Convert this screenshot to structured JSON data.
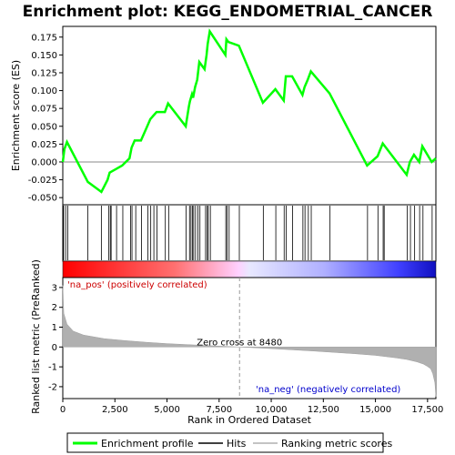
{
  "chart_data": {
    "type": "line",
    "title": "Enrichment plot: KEGG_ENDOMETRIAL_CANCER",
    "xlabel": "Rank in Ordered Dataset",
    "xlim": [
      0,
      17900
    ],
    "x_ticks": [
      0,
      2500,
      5000,
      7500,
      10000,
      12500,
      15000,
      17500
    ],
    "x_tick_labels": [
      "0",
      "2,500",
      "5,000",
      "7,500",
      "10,000",
      "12,500",
      "15,000",
      "17,500"
    ],
    "es_panel": {
      "ylabel": "Enrichment score (ES)",
      "ylim": [
        -0.06,
        0.19
      ],
      "y_ticks": [
        -0.05,
        -0.025,
        0,
        0.025,
        0.05,
        0.075,
        0.1,
        0.125,
        0.15,
        0.175
      ],
      "y_tick_labels": [
        "-0.050",
        "-0.025",
        "0.000",
        "0.025",
        "0.050",
        "0.075",
        "0.100",
        "0.125",
        "0.150",
        "0.175"
      ],
      "series": [
        {
          "name": "Enrichment profile",
          "color": "#00ff00",
          "x": [
            0,
            80,
            200,
            1200,
            1850,
            2150,
            2250,
            2550,
            2850,
            3200,
            3300,
            3450,
            3750,
            4050,
            4200,
            4350,
            4500,
            4900,
            5050,
            5900,
            6050,
            6100,
            6200,
            6250,
            6350,
            6450,
            6550,
            6800,
            6900,
            6950,
            7050,
            7800,
            7850,
            7950,
            8450,
            9600,
            10200,
            10600,
            10700,
            11000,
            11500,
            11600,
            11750,
            11900,
            12800,
            14600,
            15100,
            15350,
            16500,
            16650,
            16850,
            17100,
            17250,
            17700,
            17900
          ],
          "y": [
            0.0,
            0.018,
            0.028,
            -0.028,
            -0.042,
            -0.025,
            -0.015,
            -0.01,
            -0.005,
            0.005,
            0.02,
            0.03,
            0.03,
            0.05,
            0.06,
            0.065,
            0.07,
            0.07,
            0.082,
            0.05,
            0.078,
            0.085,
            0.095,
            0.09,
            0.105,
            0.115,
            0.14,
            0.13,
            0.15,
            0.165,
            0.183,
            0.15,
            0.172,
            0.168,
            0.163,
            0.083,
            0.102,
            0.086,
            0.12,
            0.12,
            0.094,
            0.105,
            0.115,
            0.127,
            0.096,
            -0.005,
            0.008,
            0.026,
            -0.018,
            0.0,
            0.01,
            0.0,
            0.022,
            0.0,
            0.005
          ]
        }
      ],
      "zero_line": 0
    },
    "hits": [
      40,
      140,
      240,
      1200,
      1850,
      2200,
      2280,
      2320,
      2580,
      2880,
      3250,
      3320,
      3500,
      3780,
      4080,
      4220,
      4370,
      4520,
      4920,
      5080,
      5920,
      6080,
      6150,
      6220,
      6280,
      6370,
      6480,
      6580,
      6850,
      6930,
      6980,
      7080,
      7820,
      7880,
      7980,
      8470,
      9620,
      10220,
      10620,
      10720,
      11020,
      11520,
      11620,
      11780,
      11920,
      12820,
      14620,
      15120,
      15370,
      15420,
      16520,
      16680,
      16880,
      17120,
      17280,
      17720
    ],
    "ranked_panel": {
      "ylabel": "Ranked list metric (PreRanked)",
      "ylim": [
        -2.6,
        3.5
      ],
      "y_ticks": [
        -2,
        -1,
        0,
        1,
        2,
        3
      ],
      "y_tick_labels": [
        "-2",
        "-1",
        "0",
        "1",
        "2",
        "3"
      ],
      "x": [
        0,
        50,
        200,
        500,
        1000,
        2000,
        3000,
        4000,
        5000,
        6000,
        7000,
        8480,
        10000,
        11000,
        12000,
        13000,
        14000,
        15000,
        16000,
        16500,
        17000,
        17300,
        17500,
        17650,
        17750,
        17850,
        17900
      ],
      "values": [
        3.1,
        1.7,
        1.15,
        0.8,
        0.6,
        0.42,
        0.32,
        0.24,
        0.17,
        0.12,
        0.07,
        0.0,
        -0.08,
        -0.14,
        -0.2,
        -0.27,
        -0.34,
        -0.42,
        -0.55,
        -0.63,
        -0.75,
        -0.86,
        -0.98,
        -1.1,
        -1.35,
        -1.8,
        -2.5
      ],
      "color": "#b0b0b0",
      "zero_cross_label": "Zero cross at 8480",
      "zero_cross_x": 8480,
      "pos_label": "'na_pos' (positively correlated)",
      "neg_label": "'na_neg' (negatively correlated)",
      "pos_color": "#cc0000",
      "neg_color": "#0000cc"
    },
    "legend": {
      "placement": "bottom",
      "entries": [
        {
          "label": "Enrichment profile",
          "color": "#00ff00"
        },
        {
          "label": "Hits",
          "color": "#000000"
        },
        {
          "label": "Ranking metric scores",
          "color": "#b0b0b0"
        }
      ]
    }
  }
}
